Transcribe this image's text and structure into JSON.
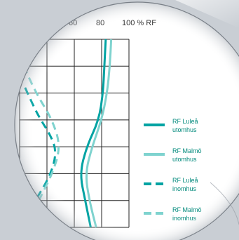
{
  "colors": {
    "dark_teal": "#00a3a3",
    "light_teal": "#7fd3cf",
    "legend_text": "#009688",
    "grid": "#222222",
    "page_bg": "#cfd3d9",
    "lens_bg": "#ffffff"
  },
  "chart_data": {
    "type": "line",
    "title": "",
    "xlabel": "",
    "ylabel": "",
    "x_tick_labels": [
      "60",
      "80",
      "100 % RF"
    ],
    "xlim": [
      20,
      100
    ],
    "x_tick_values": [
      20,
      40,
      60,
      80,
      100
    ],
    "y_rows": 7,
    "series": [
      {
        "name": "RF Luleå utomhus",
        "line": "solid",
        "color": "dark",
        "points": [
          [
            83,
            0
          ],
          [
            82,
            1
          ],
          [
            81,
            2
          ],
          [
            78,
            3
          ],
          [
            69,
            4
          ],
          [
            64,
            5
          ],
          [
            68,
            6
          ],
          [
            72,
            7
          ]
        ]
      },
      {
        "name": "RF Malmö utomhus",
        "line": "solid",
        "color": "light",
        "points": [
          [
            87,
            0
          ],
          [
            86,
            1
          ],
          [
            84,
            2
          ],
          [
            80,
            3
          ],
          [
            73,
            4
          ],
          [
            68,
            5
          ],
          [
            71,
            6
          ],
          [
            76,
            7
          ]
        ]
      },
      {
        "name": "RF Luleå inomhus",
        "line": "dashed",
        "color": "dark",
        "points": [
          [
            24,
            1.8
          ],
          [
            33,
            2.8
          ],
          [
            43,
            3.6
          ],
          [
            47,
            4.2
          ],
          [
            43,
            5
          ],
          [
            34,
            5.8
          ],
          [
            24,
            6.6
          ]
        ]
      },
      {
        "name": "RF Malmö inomhus",
        "line": "dashed",
        "color": "light",
        "points": [
          [
            23,
            1
          ],
          [
            32,
            2
          ],
          [
            44,
            3
          ],
          [
            50,
            4
          ],
          [
            44,
            5
          ],
          [
            34,
            6
          ],
          [
            24,
            7
          ]
        ]
      }
    ],
    "legend": [
      {
        "line1": "RF Luleå",
        "line2": "utomhus"
      },
      {
        "line1": "RF Malmö",
        "line2": "utomhus"
      },
      {
        "line1": "RF Luleå",
        "line2": "inomhus"
      },
      {
        "line1": "RF Malmö",
        "line2": "inomhus"
      }
    ]
  }
}
